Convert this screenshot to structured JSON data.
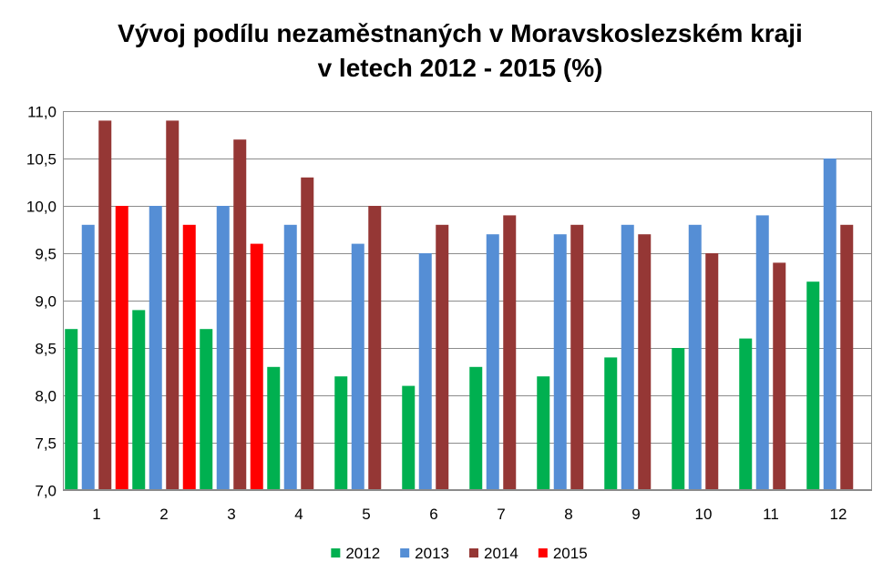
{
  "chart_data": {
    "type": "bar",
    "title_lines": [
      "Vývoj podílu nezaměstnaných v Moravskoslezském kraji",
      "v letech 2012 - 2015 (%)"
    ],
    "categories": [
      "1",
      "2",
      "3",
      "4",
      "5",
      "6",
      "7",
      "8",
      "9",
      "10",
      "11",
      "12"
    ],
    "series": [
      {
        "name": "2012",
        "color": "#00B050",
        "values": [
          8.7,
          8.9,
          8.7,
          8.3,
          8.2,
          8.1,
          8.3,
          8.2,
          8.4,
          8.5,
          8.6,
          9.2
        ]
      },
      {
        "name": "2013",
        "color": "#558ED5",
        "values": [
          9.8,
          10.0,
          10.0,
          9.8,
          9.6,
          9.5,
          9.7,
          9.7,
          9.8,
          9.8,
          9.9,
          10.5
        ]
      },
      {
        "name": "2014",
        "color": "#953735",
        "values": [
          10.9,
          10.9,
          10.7,
          10.3,
          10.0,
          9.8,
          9.9,
          9.8,
          9.7,
          9.5,
          9.4,
          9.8
        ]
      },
      {
        "name": "2015",
        "color": "#FF0000",
        "values": [
          10.0,
          9.8,
          9.6,
          null,
          null,
          null,
          null,
          null,
          null,
          null,
          null,
          null
        ]
      }
    ],
    "ylim": [
      7.0,
      11.0
    ],
    "ytick_step": 0.5,
    "ytick_labels": [
      "7,0",
      "7,5",
      "8,0",
      "8,5",
      "9,0",
      "9,5",
      "10,0",
      "10,5",
      "11,0"
    ],
    "grid": true,
    "legend_position": "bottom"
  }
}
